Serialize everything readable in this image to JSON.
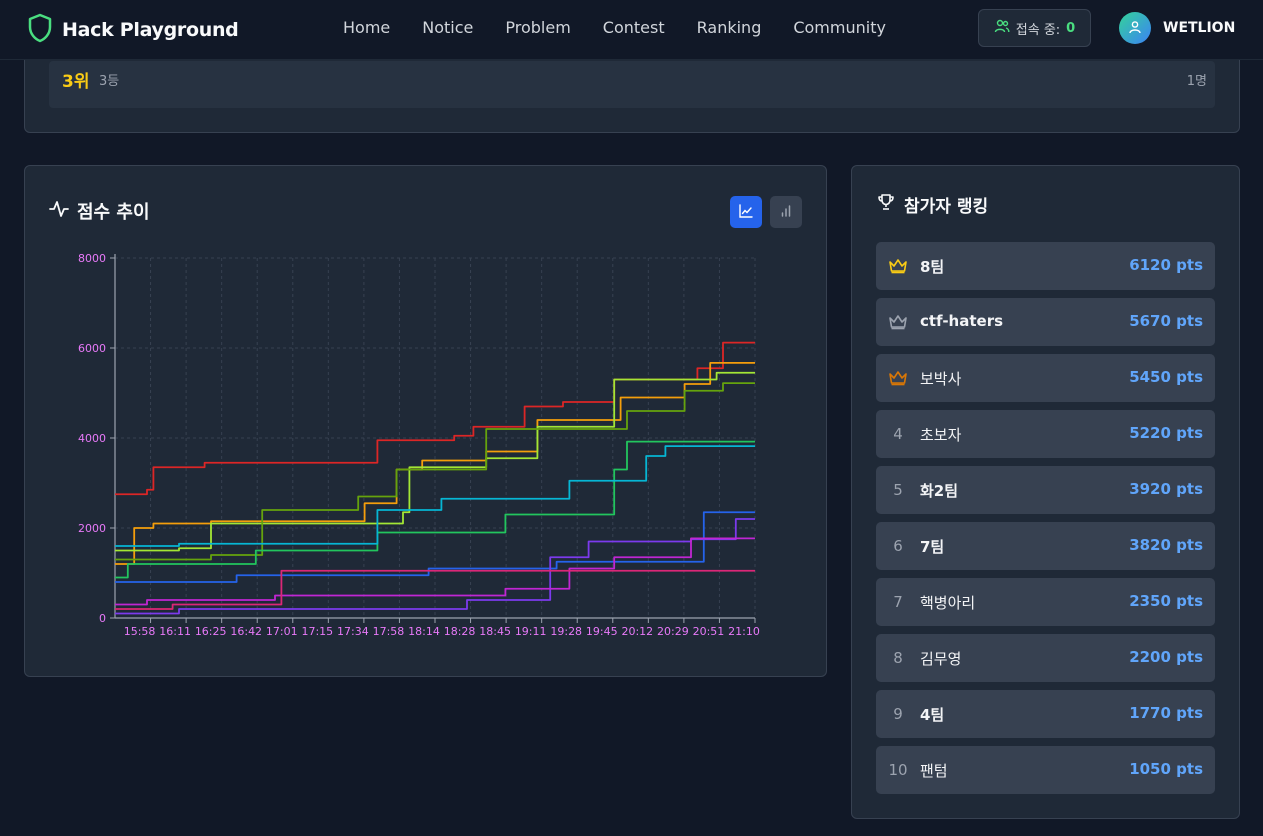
{
  "nav": {
    "brand": "Hack Playground",
    "links": [
      "Home",
      "Notice",
      "Problem",
      "Contest",
      "Ranking",
      "Community"
    ],
    "online_label": "접속 중:",
    "online_count": "0",
    "username": "WETLION"
  },
  "prize": {
    "rank": "3위",
    "sub": "3등",
    "count": "1명"
  },
  "chart_card": {
    "title": "점수 추이"
  },
  "ranking_card": {
    "title": "참가자 랭킹",
    "items": [
      {
        "pos": "",
        "name": "8팀",
        "points": "6120 pts",
        "crown": "#facc15"
      },
      {
        "pos": "",
        "name": "ctf-haters",
        "points": "5670 pts",
        "crown": "#9ca3af"
      },
      {
        "pos": "",
        "name": "보박사",
        "points": "5450 pts",
        "crown": "#d97706"
      },
      {
        "pos": "4",
        "name": "초보자",
        "points": "5220 pts"
      },
      {
        "pos": "5",
        "name": "화2팀",
        "points": "3920 pts"
      },
      {
        "pos": "6",
        "name": "7팀",
        "points": "3820 pts"
      },
      {
        "pos": "7",
        "name": "핵병아리",
        "points": "2350 pts"
      },
      {
        "pos": "8",
        "name": "김무영",
        "points": "2200 pts"
      },
      {
        "pos": "9",
        "name": "4팀",
        "points": "1770 pts"
      },
      {
        "pos": "10",
        "name": "팬텀",
        "points": "1050 pts"
      }
    ]
  },
  "chart_data": {
    "type": "line",
    "step": true,
    "ylim": [
      0,
      8000
    ],
    "yticks": [
      0,
      2000,
      4000,
      6000,
      8000
    ],
    "xtick_labels": [
      "15:58",
      "16:11",
      "16:25",
      "16:42",
      "17:01",
      "17:15",
      "17:34",
      "17:58",
      "18:14",
      "18:28",
      "18:45",
      "19:11",
      "19:28",
      "19:45",
      "20:12",
      "20:29",
      "20:51",
      "21:10"
    ],
    "grid": true,
    "series": [
      {
        "color": "#dc2626",
        "points": [
          [
            0,
            2750
          ],
          [
            0.05,
            2850
          ],
          [
            0.06,
            3350
          ],
          [
            0.14,
            3450
          ],
          [
            0.41,
            3950
          ],
          [
            0.53,
            4050
          ],
          [
            0.56,
            4250
          ],
          [
            0.64,
            4700
          ],
          [
            0.7,
            4800
          ],
          [
            0.78,
            5300
          ],
          [
            0.91,
            5550
          ],
          [
            0.95,
            6120
          ],
          [
            1,
            6120
          ]
        ]
      },
      {
        "color": "#f59e0b",
        "points": [
          [
            0,
            1200
          ],
          [
            0.03,
            2000
          ],
          [
            0.06,
            2100
          ],
          [
            0.15,
            2150
          ],
          [
            0.39,
            2550
          ],
          [
            0.44,
            3300
          ],
          [
            0.48,
            3500
          ],
          [
            0.58,
            3700
          ],
          [
            0.66,
            4400
          ],
          [
            0.79,
            4900
          ],
          [
            0.89,
            5200
          ],
          [
            0.93,
            5670
          ],
          [
            1,
            5670
          ]
        ]
      },
      {
        "color": "#a3e635",
        "points": [
          [
            0,
            1500
          ],
          [
            0.1,
            1550
          ],
          [
            0.15,
            2100
          ],
          [
            0.45,
            2350
          ],
          [
            0.46,
            3350
          ],
          [
            0.58,
            3550
          ],
          [
            0.66,
            4250
          ],
          [
            0.78,
            5300
          ],
          [
            0.94,
            5450
          ],
          [
            1,
            5450
          ]
        ]
      },
      {
        "color": "#65a30d",
        "points": [
          [
            0,
            1300
          ],
          [
            0.15,
            1400
          ],
          [
            0.23,
            2400
          ],
          [
            0.38,
            2700
          ],
          [
            0.44,
            3300
          ],
          [
            0.58,
            4200
          ],
          [
            0.8,
            4600
          ],
          [
            0.89,
            5050
          ],
          [
            0.95,
            5220
          ],
          [
            1,
            5220
          ]
        ]
      },
      {
        "color": "#22c55e",
        "points": [
          [
            0,
            900
          ],
          [
            0.02,
            1200
          ],
          [
            0.22,
            1500
          ],
          [
            0.41,
            1900
          ],
          [
            0.61,
            2300
          ],
          [
            0.78,
            3300
          ],
          [
            0.8,
            3920
          ],
          [
            1,
            3920
          ]
        ]
      },
      {
        "color": "#06b6d4",
        "points": [
          [
            0,
            1600
          ],
          [
            0.1,
            1650
          ],
          [
            0.41,
            2400
          ],
          [
            0.51,
            2650
          ],
          [
            0.71,
            3050
          ],
          [
            0.83,
            3600
          ],
          [
            0.86,
            3820
          ],
          [
            1,
            3820
          ]
        ]
      },
      {
        "color": "#2563eb",
        "points": [
          [
            0,
            800
          ],
          [
            0.19,
            950
          ],
          [
            0.49,
            1100
          ],
          [
            0.69,
            1250
          ],
          [
            0.92,
            2350
          ],
          [
            1,
            2350
          ]
        ]
      },
      {
        "color": "#7c3aed",
        "points": [
          [
            0,
            100
          ],
          [
            0.1,
            200
          ],
          [
            0.55,
            400
          ],
          [
            0.68,
            1350
          ],
          [
            0.74,
            1700
          ],
          [
            0.9,
            1750
          ],
          [
            0.97,
            2200
          ],
          [
            1,
            2200
          ]
        ]
      },
      {
        "color": "#c026d3",
        "points": [
          [
            0,
            300
          ],
          [
            0.05,
            400
          ],
          [
            0.25,
            500
          ],
          [
            0.61,
            650
          ],
          [
            0.71,
            1100
          ],
          [
            0.78,
            1350
          ],
          [
            0.9,
            1770
          ],
          [
            1,
            1770
          ]
        ]
      },
      {
        "color": "#db2777",
        "points": [
          [
            0,
            200
          ],
          [
            0.09,
            300
          ],
          [
            0.26,
            1050
          ],
          [
            1,
            1050
          ]
        ]
      }
    ]
  }
}
